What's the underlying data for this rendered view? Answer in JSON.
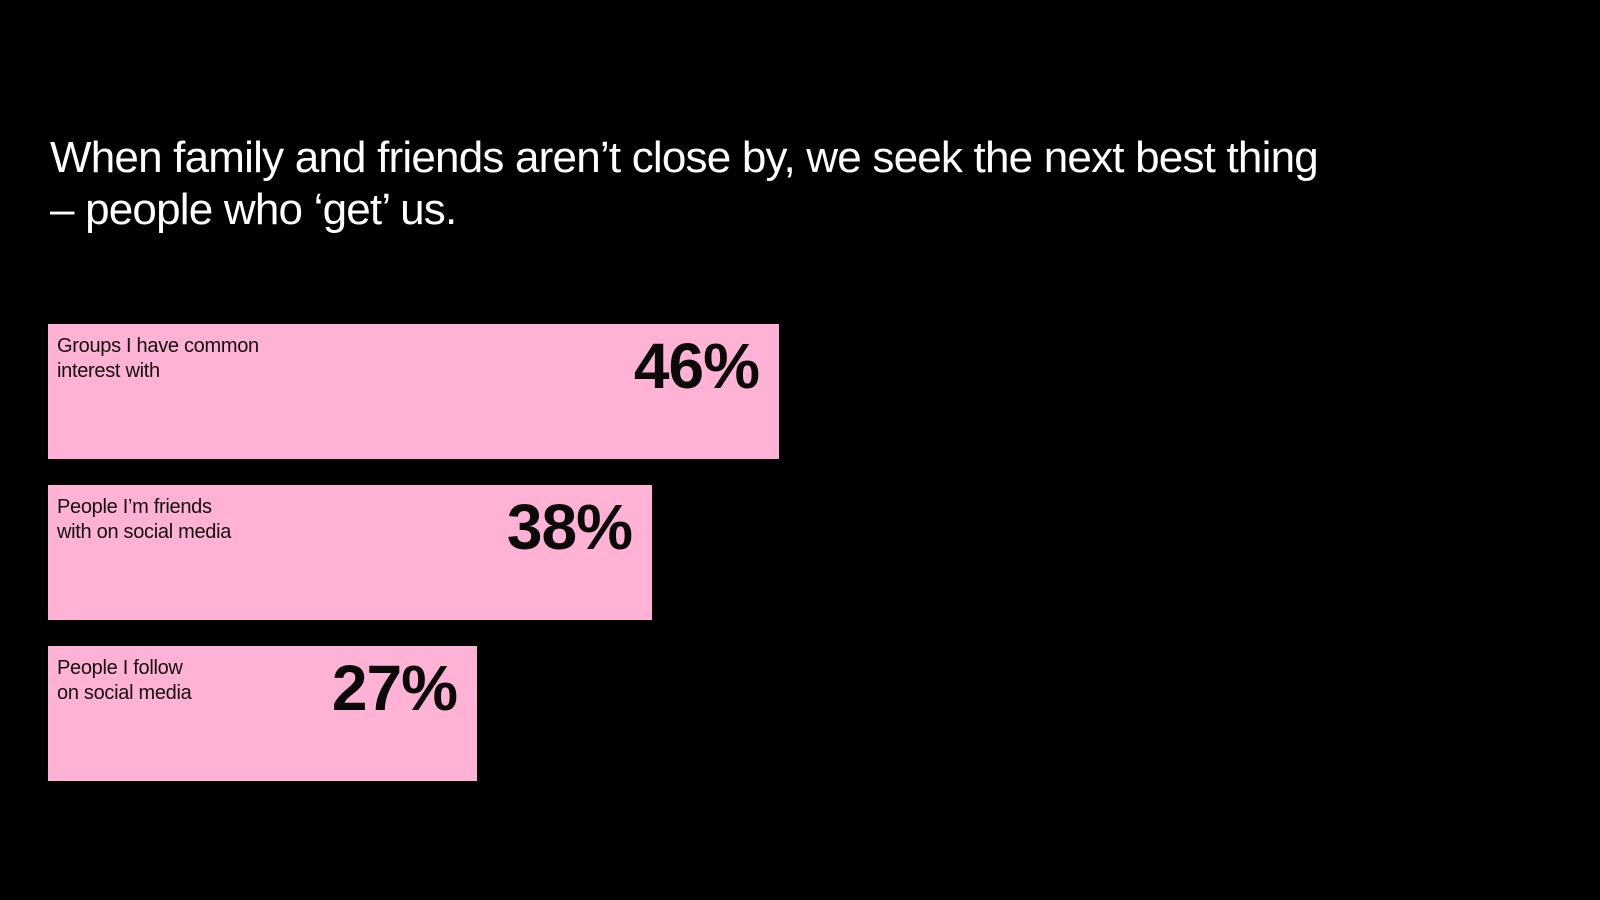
{
  "title": {
    "line1": "When family and friends aren’t close by, we seek the next best thing",
    "line2": "– people who ‘get’ us."
  },
  "colors": {
    "background": "#000000",
    "bar": "#ffb1d6",
    "title_text": "#ffffff",
    "bar_text": "#111111"
  },
  "chart_data": {
    "type": "bar",
    "orientation": "horizontal",
    "title": "When family and friends aren’t close by, we seek the next best thing – people who ‘get’ us.",
    "unit": "%",
    "categories": [
      "Groups I have common interest with",
      "People I’m friends with on social media",
      "People I follow on social media"
    ],
    "values": [
      46,
      38,
      27
    ],
    "bars": [
      {
        "label_lines": [
          "Groups I have common",
          "interest with"
        ],
        "value": 46,
        "value_label": "46%"
      },
      {
        "label_lines": [
          "People I’m friends",
          "with on social media"
        ],
        "value": 38,
        "value_label": "38%"
      },
      {
        "label_lines": [
          "People I follow",
          "on social media"
        ],
        "value": 27,
        "value_label": "27%"
      }
    ],
    "grid": false,
    "legend": "none"
  }
}
